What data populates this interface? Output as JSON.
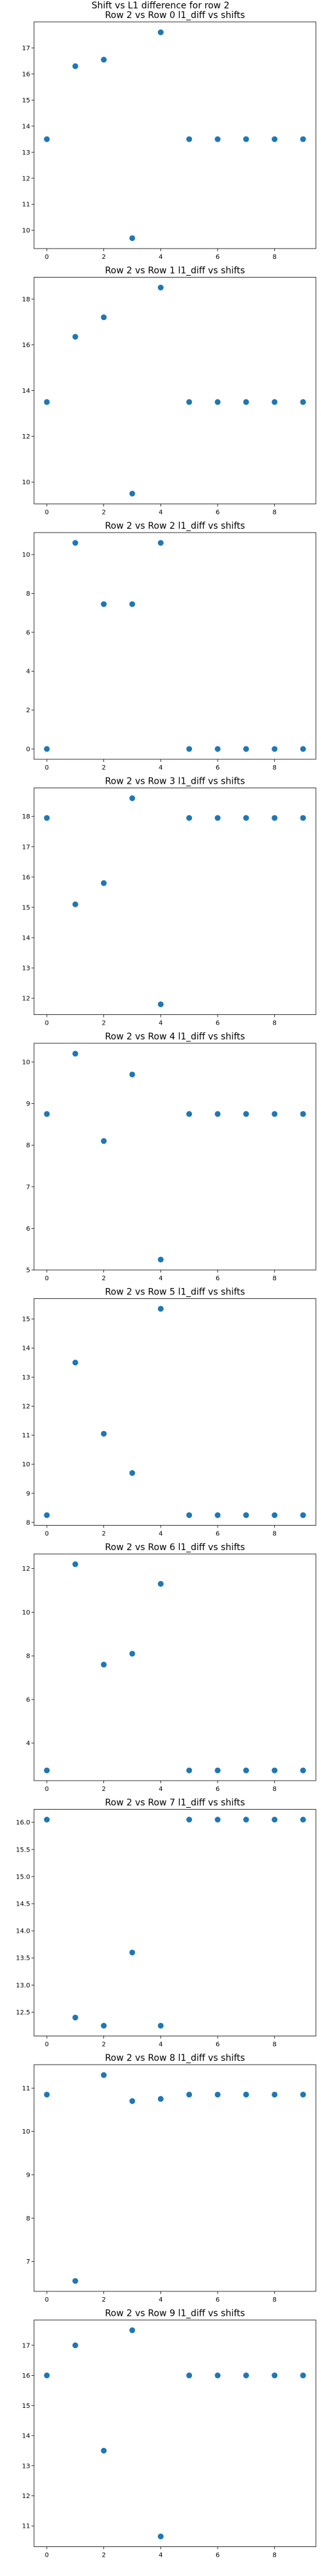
{
  "figure": {
    "suptitle": "Shift vs L1 difference for row 2"
  },
  "colors": {
    "marker": "#1f77b4",
    "axes": "#000000",
    "background": "#ffffff"
  },
  "chart_data": [
    {
      "type": "scatter",
      "title": "Row 2 vs Row 0 l1_diff vs shifts",
      "x": [
        0,
        1,
        2,
        3,
        4,
        5,
        6,
        7,
        8,
        9
      ],
      "y": [
        13.5,
        16.3,
        16.55,
        9.7,
        17.6,
        13.5,
        13.5,
        13.5,
        13.5,
        13.5
      ],
      "xlim": [
        -0.45,
        9.45
      ],
      "ylim": [
        9.3,
        18.0
      ],
      "xticks": [
        0,
        2,
        4,
        6,
        8
      ],
      "yticks": [
        10,
        11,
        12,
        13,
        14,
        15,
        16,
        17
      ]
    },
    {
      "type": "scatter",
      "title": "Row 2 vs Row 1 l1_diff vs shifts",
      "x": [
        0,
        1,
        2,
        3,
        4,
        5,
        6,
        7,
        8,
        9
      ],
      "y": [
        13.5,
        16.35,
        17.2,
        9.5,
        18.5,
        13.5,
        13.5,
        13.5,
        13.5,
        13.5
      ],
      "xlim": [
        -0.45,
        9.45
      ],
      "ylim": [
        9.05,
        18.95
      ],
      "xticks": [
        0,
        2,
        4,
        6,
        8
      ],
      "yticks": [
        10,
        12,
        14,
        16,
        18
      ]
    },
    {
      "type": "scatter",
      "title": "Row 2 vs Row 2 l1_diff vs shifts",
      "x": [
        0,
        1,
        2,
        3,
        4,
        5,
        6,
        7,
        8,
        9
      ],
      "y": [
        0,
        10.6,
        7.45,
        7.45,
        10.6,
        0,
        0,
        0,
        0,
        0
      ],
      "xlim": [
        -0.45,
        9.45
      ],
      "ylim": [
        -0.53,
        11.13
      ],
      "xticks": [
        0,
        2,
        4,
        6,
        8
      ],
      "yticks": [
        0,
        2,
        4,
        6,
        8,
        10
      ]
    },
    {
      "type": "scatter",
      "title": "Row 2 vs Row 3 l1_diff vs shifts",
      "x": [
        0,
        1,
        2,
        3,
        4,
        5,
        6,
        7,
        8,
        9
      ],
      "y": [
        17.95,
        15.1,
        15.8,
        18.6,
        11.8,
        17.95,
        17.95,
        17.95,
        17.95,
        17.95
      ],
      "xlim": [
        -0.45,
        9.45
      ],
      "ylim": [
        11.46,
        18.94
      ],
      "xticks": [
        0,
        2,
        4,
        6,
        8
      ],
      "yticks": [
        12,
        13,
        14,
        15,
        16,
        17,
        18
      ]
    },
    {
      "type": "scatter",
      "title": "Row 2 vs Row 4 l1_diff vs shifts",
      "x": [
        0,
        1,
        2,
        3,
        4,
        5,
        6,
        7,
        8,
        9
      ],
      "y": [
        8.75,
        10.2,
        8.1,
        9.7,
        5.25,
        8.75,
        8.75,
        8.75,
        8.75,
        8.75
      ],
      "xlim": [
        -0.45,
        9.45
      ],
      "ylim": [
        5.0,
        10.45
      ],
      "xticks": [
        0,
        2,
        4,
        6,
        8
      ],
      "yticks": [
        5,
        6,
        7,
        8,
        9,
        10
      ]
    },
    {
      "type": "scatter",
      "title": "Row 2 vs Row 5 l1_diff vs shifts",
      "x": [
        0,
        1,
        2,
        3,
        4,
        5,
        6,
        7,
        8,
        9
      ],
      "y": [
        8.25,
        13.5,
        11.05,
        9.7,
        15.35,
        8.25,
        8.25,
        8.25,
        8.25,
        8.25
      ],
      "xlim": [
        -0.45,
        9.45
      ],
      "ylim": [
        7.9,
        15.7
      ],
      "xticks": [
        0,
        2,
        4,
        6,
        8
      ],
      "yticks": [
        8,
        9,
        10,
        11,
        12,
        13,
        14,
        15
      ]
    },
    {
      "type": "scatter",
      "title": "Row 2 vs Row 6 l1_diff vs shifts",
      "x": [
        0,
        1,
        2,
        3,
        4,
        5,
        6,
        7,
        8,
        9
      ],
      "y": [
        2.75,
        12.2,
        7.6,
        8.1,
        11.3,
        2.75,
        2.75,
        2.75,
        2.75,
        2.75
      ],
      "xlim": [
        -0.45,
        9.45
      ],
      "ylim": [
        2.28,
        12.67
      ],
      "xticks": [
        0,
        2,
        4,
        6,
        8
      ],
      "yticks": [
        4,
        6,
        8,
        10,
        12
      ]
    },
    {
      "type": "scatter",
      "title": "Row 2 vs Row 7 l1_diff vs shifts",
      "x": [
        0,
        1,
        2,
        3,
        4,
        5,
        6,
        7,
        8,
        9
      ],
      "y": [
        16.05,
        12.4,
        12.25,
        13.6,
        12.25,
        16.05,
        16.05,
        16.05,
        16.05,
        16.05
      ],
      "xlim": [
        -0.45,
        9.45
      ],
      "ylim": [
        12.06,
        16.24
      ],
      "xticks": [
        0,
        2,
        4,
        6,
        8
      ],
      "yticks": [
        12.5,
        13.0,
        13.5,
        14.0,
        14.5,
        15.0,
        15.5,
        16.0
      ]
    },
    {
      "type": "scatter",
      "title": "Row 2 vs Row 8 l1_diff vs shifts",
      "x": [
        0,
        1,
        2,
        3,
        4,
        5,
        6,
        7,
        8,
        9
      ],
      "y": [
        10.85,
        6.55,
        11.3,
        10.7,
        10.75,
        10.85,
        10.85,
        10.85,
        10.85,
        10.85
      ],
      "xlim": [
        -0.45,
        9.45
      ],
      "ylim": [
        6.31,
        11.54
      ],
      "xticks": [
        0,
        2,
        4,
        6,
        8
      ],
      "yticks": [
        7,
        8,
        9,
        10,
        11
      ]
    },
    {
      "type": "scatter",
      "title": "Row 2 vs Row 9 l1_diff vs shifts",
      "x": [
        0,
        1,
        2,
        3,
        4,
        5,
        6,
        7,
        8,
        9
      ],
      "y": [
        16.0,
        17.0,
        13.5,
        17.5,
        10.65,
        16.0,
        16.0,
        16.0,
        16.0,
        16.0
      ],
      "xlim": [
        -0.45,
        9.45
      ],
      "ylim": [
        10.31,
        17.84
      ],
      "xticks": [
        0,
        2,
        4,
        6,
        8
      ],
      "yticks": [
        11,
        12,
        13,
        14,
        15,
        16,
        17
      ]
    }
  ]
}
